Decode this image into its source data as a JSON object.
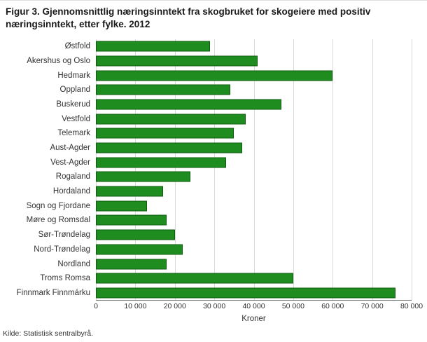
{
  "title": "Figur 3. Gjennomsnittlig næringsinntekt fra skogbruket for skogeiere med positiv næringsinntekt, etter fylke. 2012",
  "source": "Kilde: Statistisk sentralbyrå.",
  "chart_data": {
    "type": "bar",
    "orientation": "horizontal",
    "title": "Figur 3. Gjennomsnittlig næringsinntekt fra skogbruket for skogeiere med positiv næringsinntekt, etter fylke. 2012",
    "categories": [
      "Østfold",
      "Akershus og Oslo",
      "Hedmark",
      "Oppland",
      "Buskerud",
      "Vestfold",
      "Telemark",
      "Aust-Agder",
      "Vest-Agder",
      "Rogaland",
      "Hordaland",
      "Sogn og Fjordane",
      "Møre og Romsdal",
      "Sør-Trøndelag",
      "Nord-Trøndelag",
      "Nordland",
      "Troms Romsa",
      "Finnmark Finnmárku"
    ],
    "values": [
      29000,
      41000,
      60000,
      34000,
      47000,
      38000,
      35000,
      37000,
      33000,
      24000,
      17000,
      13000,
      18000,
      20000,
      22000,
      18000,
      50000,
      76000
    ],
    "xlabel": "Kroner",
    "xlim": [
      0,
      80000
    ],
    "xticks": [
      0,
      10000,
      20000,
      30000,
      40000,
      50000,
      60000,
      70000,
      80000
    ],
    "xtick_labels": [
      "0",
      "10 000",
      "20 000",
      "30 000",
      "40 000",
      "50 000",
      "60 000",
      "70 000",
      "80 000"
    ],
    "bar_color": "#1e8c1e",
    "bar_border_color": "#0d5e0d",
    "grid": "vertical",
    "gridline_color": "#d9d9d9"
  }
}
